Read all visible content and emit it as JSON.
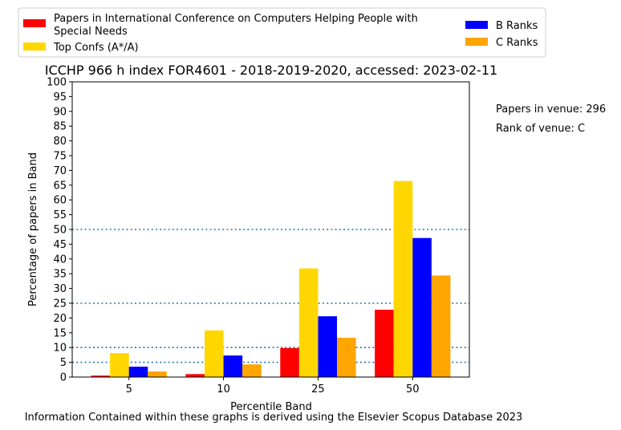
{
  "chart_data": {
    "type": "bar",
    "title": "ICCHP 966 h index FOR4601 - 2018-2019-2020, accessed: 2023-02-11",
    "xlabel": "Percentile Band",
    "ylabel": "Percentage of papers in Band",
    "categories": [
      "5",
      "10",
      "25",
      "50"
    ],
    "ylim": [
      0,
      100
    ],
    "yticks": [
      0,
      5,
      10,
      15,
      20,
      25,
      30,
      35,
      40,
      45,
      50,
      55,
      60,
      65,
      70,
      75,
      80,
      85,
      90,
      95,
      100
    ],
    "reference_lines": [
      5,
      10,
      25,
      50
    ],
    "series": [
      {
        "name": "Papers in International Conference on Computers Helping People with Special Needs",
        "color": "#ff0000",
        "values": [
          0.5,
          1.0,
          9.8,
          22.8
        ]
      },
      {
        "name": "Top Confs (A*/A)",
        "color": "#ffd700",
        "values": [
          8.1,
          15.8,
          36.8,
          66.4
        ]
      },
      {
        "name": "B Ranks",
        "color": "#0000ff",
        "values": [
          3.5,
          7.3,
          20.6,
          47.1
        ]
      },
      {
        "name": "C Ranks",
        "color": "#ffa500",
        "values": [
          1.9,
          4.3,
          13.3,
          34.4
        ]
      }
    ],
    "legend_position": "top",
    "grid": false
  },
  "annotations": {
    "venue_papers": "Papers in venue: 296",
    "venue_rank": "Rank of venue: C",
    "footer": "Information Contained within these graphs is derived using the Elsevier Scopus Database 2023"
  },
  "legend_labels": {
    "red_line1": "Papers in International Conference on Computers Helping People with",
    "red_line2": "Special Needs"
  },
  "colors": {
    "reference_line": "#1f77b4",
    "legend_border": "#cccccc"
  }
}
